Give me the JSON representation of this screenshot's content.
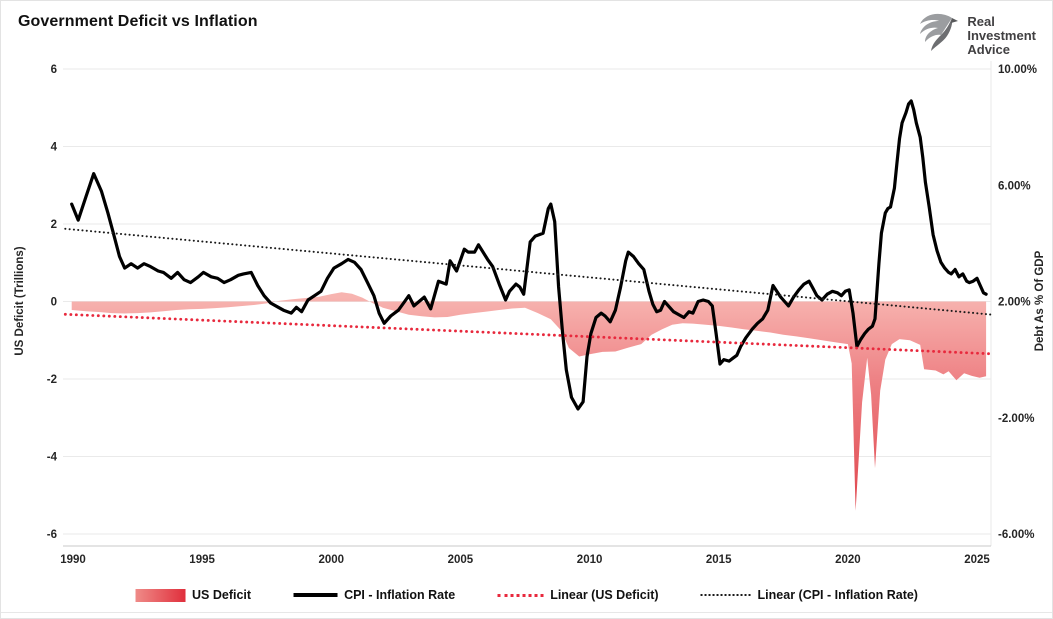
{
  "header": {
    "title": "Government Deficit vs Inflation",
    "logo": {
      "line1": "Real",
      "line2": "Investment",
      "line3": "Advice"
    }
  },
  "legend": {
    "items": [
      {
        "label": "US Deficit",
        "type": "area"
      },
      {
        "label": "CPI - Inflation Rate",
        "type": "line"
      },
      {
        "label": "Linear (US Deficit)",
        "type": "dotted-red"
      },
      {
        "label": "Linear (CPI - Inflation Rate)",
        "type": "dotted-black"
      }
    ]
  },
  "colors": {
    "cpi_line": "#000000",
    "deficit_fill_light": "#f7b4b0",
    "deficit_fill_mid": "#ee8285",
    "deficit_fill_deep": "#dd3b43",
    "deficit_trend": "#e8293d",
    "cpi_trend": "#1a1a1a",
    "gridline": "#eaeaea",
    "axis_line": "#c9c9c9",
    "tick_text": "#262626",
    "legend_area_left": "#ef8b88",
    "legend_area_right": "#e02f3c",
    "logo_gray": "#808285",
    "logo_gray_dark": "#6d6e71",
    "logo_text": "#414042"
  },
  "chart_data": {
    "type": "line",
    "title": "Government Deficit vs Inflation",
    "grid": "horizontal",
    "legend_position": "bottom",
    "x_axis": {
      "ticks": [
        1990,
        1995,
        2000,
        2005,
        2010,
        2015,
        2020,
        2025
      ],
      "range": [
        1989.6,
        2025.55
      ]
    },
    "y_axis_left": {
      "label": "US Deficit (Trillions)",
      "ticks": [
        6,
        4,
        2,
        0,
        -2,
        -4,
        -6
      ],
      "range": [
        -6,
        6
      ]
    },
    "y_axis_right": {
      "label": "Debt As % Of GDP",
      "ticks": [
        {
          "value": 10,
          "label": "10.00%"
        },
        {
          "value": 6,
          "label": "6.00%"
        },
        {
          "value": 2,
          "label": "2.00%"
        },
        {
          "value": -2,
          "label": "-2.00%"
        },
        {
          "value": -6,
          "label": "-6.00%"
        }
      ],
      "range": [
        -6,
        10
      ]
    },
    "series": [
      {
        "name": "US Deficit",
        "type": "area",
        "axis": "left",
        "unit": "trillions_usd",
        "points": [
          [
            1989.95,
            -0.22
          ],
          [
            1990.5,
            -0.25
          ],
          [
            1991,
            -0.27
          ],
          [
            1991.5,
            -0.3
          ],
          [
            1992,
            -0.31
          ],
          [
            1992.5,
            -0.3
          ],
          [
            1993,
            -0.28
          ],
          [
            1993.5,
            -0.25
          ],
          [
            1994,
            -0.22
          ],
          [
            1994.5,
            -0.2
          ],
          [
            1995,
            -0.19
          ],
          [
            1995.5,
            -0.17
          ],
          [
            1996,
            -0.15
          ],
          [
            1996.5,
            -0.12
          ],
          [
            1997,
            -0.09
          ],
          [
            1997.5,
            -0.05
          ],
          [
            1998,
            0.02
          ],
          [
            1998.5,
            0.06
          ],
          [
            1999,
            0.09
          ],
          [
            1999.5,
            0.12
          ],
          [
            2000,
            0.19
          ],
          [
            2000.4,
            0.24
          ],
          [
            2000.8,
            0.2
          ],
          [
            2001.2,
            0.1
          ],
          [
            2001.6,
            -0.04
          ],
          [
            2002,
            -0.16
          ],
          [
            2002.5,
            -0.25
          ],
          [
            2003,
            -0.34
          ],
          [
            2003.5,
            -0.38
          ],
          [
            2004,
            -0.41
          ],
          [
            2004.5,
            -0.4
          ],
          [
            2005,
            -0.34
          ],
          [
            2005.5,
            -0.3
          ],
          [
            2006,
            -0.26
          ],
          [
            2006.5,
            -0.22
          ],
          [
            2007,
            -0.18
          ],
          [
            2007.5,
            -0.16
          ],
          [
            2008,
            -0.3
          ],
          [
            2008.5,
            -0.46
          ],
          [
            2008.9,
            -0.75
          ],
          [
            2009.2,
            -1.2
          ],
          [
            2009.6,
            -1.42
          ],
          [
            2010,
            -1.36
          ],
          [
            2010.5,
            -1.3
          ],
          [
            2011,
            -1.29
          ],
          [
            2011.5,
            -1.19
          ],
          [
            2012,
            -1.1
          ],
          [
            2012.4,
            -0.86
          ],
          [
            2012.8,
            -0.72
          ],
          [
            2013.2,
            -0.6
          ],
          [
            2013.6,
            -0.56
          ],
          [
            2014,
            -0.57
          ],
          [
            2014.5,
            -0.6
          ],
          [
            2015,
            -0.63
          ],
          [
            2015.5,
            -0.67
          ],
          [
            2016,
            -0.72
          ],
          [
            2016.5,
            -0.76
          ],
          [
            2017,
            -0.8
          ],
          [
            2017.5,
            -0.86
          ],
          [
            2018,
            -0.9
          ],
          [
            2018.5,
            -0.95
          ],
          [
            2019,
            -1.0
          ],
          [
            2019.5,
            -1.05
          ],
          [
            2020,
            -1.1
          ],
          [
            2020.15,
            -1.6
          ],
          [
            2020.3,
            -5.4
          ],
          [
            2020.55,
            -2.6
          ],
          [
            2020.75,
            -1.45
          ],
          [
            2020.9,
            -2.4
          ],
          [
            2021.05,
            -4.3
          ],
          [
            2021.25,
            -2.3
          ],
          [
            2021.45,
            -1.5
          ],
          [
            2021.7,
            -1.1
          ],
          [
            2022,
            -0.97
          ],
          [
            2022.4,
            -1.0
          ],
          [
            2022.8,
            -1.12
          ],
          [
            2022.95,
            -1.75
          ],
          [
            2023.4,
            -1.78
          ],
          [
            2023.7,
            -1.88
          ],
          [
            2023.9,
            -1.8
          ],
          [
            2024.2,
            -2.03
          ],
          [
            2024.5,
            -1.85
          ],
          [
            2024.8,
            -1.92
          ],
          [
            2025.1,
            -1.97
          ],
          [
            2025.35,
            -1.93
          ]
        ]
      },
      {
        "name": "CPI - Inflation Rate",
        "type": "line",
        "axis": "right",
        "unit": "percent",
        "points": [
          [
            1989.95,
            5.35
          ],
          [
            1990.2,
            4.8
          ],
          [
            1990.5,
            5.6
          ],
          [
            1990.8,
            6.4
          ],
          [
            1991.1,
            5.8
          ],
          [
            1991.35,
            5.05
          ],
          [
            1991.55,
            4.4
          ],
          [
            1991.8,
            3.55
          ],
          [
            1992,
            3.15
          ],
          [
            1992.25,
            3.3
          ],
          [
            1992.5,
            3.15
          ],
          [
            1992.75,
            3.3
          ],
          [
            1993,
            3.2
          ],
          [
            1993.3,
            3.05
          ],
          [
            1993.5,
            3.0
          ],
          [
            1993.8,
            2.8
          ],
          [
            1994.05,
            3.0
          ],
          [
            1994.3,
            2.75
          ],
          [
            1994.55,
            2.65
          ],
          [
            1994.85,
            2.85
          ],
          [
            1995.05,
            3.0
          ],
          [
            1995.35,
            2.85
          ],
          [
            1995.6,
            2.8
          ],
          [
            1995.85,
            2.65
          ],
          [
            1996.1,
            2.75
          ],
          [
            1996.4,
            2.9
          ],
          [
            1996.6,
            2.95
          ],
          [
            1996.9,
            3.0
          ],
          [
            1997.15,
            2.55
          ],
          [
            1997.4,
            2.2
          ],
          [
            1997.65,
            1.95
          ],
          [
            1997.95,
            1.8
          ],
          [
            1998.15,
            1.7
          ],
          [
            1998.45,
            1.6
          ],
          [
            1998.65,
            1.8
          ],
          [
            1998.85,
            1.65
          ],
          [
            1999.1,
            2.05
          ],
          [
            1999.35,
            2.2
          ],
          [
            1999.6,
            2.35
          ],
          [
            1999.85,
            2.8
          ],
          [
            2000.1,
            3.15
          ],
          [
            2000.4,
            3.3
          ],
          [
            2000.65,
            3.45
          ],
          [
            2000.9,
            3.35
          ],
          [
            2001.15,
            3.1
          ],
          [
            2001.4,
            2.65
          ],
          [
            2001.65,
            2.2
          ],
          [
            2001.85,
            1.6
          ],
          [
            2002.05,
            1.25
          ],
          [
            2002.3,
            1.5
          ],
          [
            2002.6,
            1.7
          ],
          [
            2002.8,
            1.95
          ],
          [
            2003,
            2.2
          ],
          [
            2003.2,
            1.85
          ],
          [
            2003.4,
            2.0
          ],
          [
            2003.6,
            2.15
          ],
          [
            2003.85,
            1.75
          ],
          [
            2004.15,
            2.7
          ],
          [
            2004.45,
            2.6
          ],
          [
            2004.6,
            3.4
          ],
          [
            2004.85,
            3.05
          ],
          [
            2005.15,
            3.8
          ],
          [
            2005.3,
            3.7
          ],
          [
            2005.55,
            3.7
          ],
          [
            2005.7,
            3.95
          ],
          [
            2006.05,
            3.45
          ],
          [
            2006.25,
            3.2
          ],
          [
            2006.5,
            2.6
          ],
          [
            2006.75,
            2.05
          ],
          [
            2006.9,
            2.35
          ],
          [
            2007.15,
            2.6
          ],
          [
            2007.3,
            2.5
          ],
          [
            2007.45,
            2.25
          ],
          [
            2007.7,
            4.05
          ],
          [
            2007.9,
            4.25
          ],
          [
            2008.2,
            4.35
          ],
          [
            2008.4,
            5.2
          ],
          [
            2008.5,
            5.35
          ],
          [
            2008.65,
            4.75
          ],
          [
            2008.8,
            2.5
          ],
          [
            2008.95,
            0.95
          ],
          [
            2009.1,
            -0.35
          ],
          [
            2009.3,
            -1.3
          ],
          [
            2009.55,
            -1.7
          ],
          [
            2009.75,
            -1.45
          ],
          [
            2009.9,
            0.1
          ],
          [
            2010.05,
            0.9
          ],
          [
            2010.25,
            1.45
          ],
          [
            2010.45,
            1.6
          ],
          [
            2010.6,
            1.5
          ],
          [
            2010.8,
            1.3
          ],
          [
            2011,
            1.7
          ],
          [
            2011.2,
            2.5
          ],
          [
            2011.4,
            3.4
          ],
          [
            2011.5,
            3.7
          ],
          [
            2011.7,
            3.55
          ],
          [
            2011.9,
            3.3
          ],
          [
            2012.1,
            3.1
          ],
          [
            2012.3,
            2.35
          ],
          [
            2012.45,
            1.9
          ],
          [
            2012.6,
            1.65
          ],
          [
            2012.75,
            1.7
          ],
          [
            2012.9,
            2.0
          ],
          [
            2013.05,
            1.85
          ],
          [
            2013.25,
            1.65
          ],
          [
            2013.45,
            1.55
          ],
          [
            2013.65,
            1.45
          ],
          [
            2013.85,
            1.65
          ],
          [
            2014,
            1.6
          ],
          [
            2014.2,
            2.0
          ],
          [
            2014.4,
            2.05
          ],
          [
            2014.6,
            2.0
          ],
          [
            2014.75,
            1.85
          ],
          [
            2014.9,
            0.9
          ],
          [
            2015.05,
            -0.15
          ],
          [
            2015.2,
            0.0
          ],
          [
            2015.4,
            -0.05
          ],
          [
            2015.55,
            0.05
          ],
          [
            2015.7,
            0.15
          ],
          [
            2015.85,
            0.45
          ],
          [
            2016.05,
            0.75
          ],
          [
            2016.3,
            1.05
          ],
          [
            2016.5,
            1.25
          ],
          [
            2016.7,
            1.4
          ],
          [
            2016.9,
            1.7
          ],
          [
            2017.1,
            2.55
          ],
          [
            2017.25,
            2.35
          ],
          [
            2017.4,
            2.15
          ],
          [
            2017.55,
            2.0
          ],
          [
            2017.7,
            1.85
          ],
          [
            2017.9,
            2.15
          ],
          [
            2018.1,
            2.4
          ],
          [
            2018.3,
            2.6
          ],
          [
            2018.5,
            2.7
          ],
          [
            2018.65,
            2.45
          ],
          [
            2018.8,
            2.2
          ],
          [
            2019,
            2.05
          ],
          [
            2019.2,
            2.25
          ],
          [
            2019.4,
            2.35
          ],
          [
            2019.6,
            2.3
          ],
          [
            2019.75,
            2.2
          ],
          [
            2019.9,
            2.35
          ],
          [
            2020.05,
            2.4
          ],
          [
            2020.2,
            1.6
          ],
          [
            2020.35,
            0.45
          ],
          [
            2020.5,
            0.7
          ],
          [
            2020.65,
            0.9
          ],
          [
            2020.8,
            1.05
          ],
          [
            2020.95,
            1.15
          ],
          [
            2021.05,
            1.4
          ],
          [
            2021.2,
            3.3
          ],
          [
            2021.3,
            4.35
          ],
          [
            2021.45,
            5.05
          ],
          [
            2021.55,
            5.2
          ],
          [
            2021.65,
            5.25
          ],
          [
            2021.8,
            5.9
          ],
          [
            2021.9,
            6.75
          ],
          [
            2022,
            7.6
          ],
          [
            2022.1,
            8.15
          ],
          [
            2022.25,
            8.5
          ],
          [
            2022.35,
            8.8
          ],
          [
            2022.45,
            8.9
          ],
          [
            2022.55,
            8.6
          ],
          [
            2022.65,
            8.15
          ],
          [
            2022.8,
            7.65
          ],
          [
            2022.9,
            6.95
          ],
          [
            2023,
            6.1
          ],
          [
            2023.15,
            5.25
          ],
          [
            2023.3,
            4.3
          ],
          [
            2023.45,
            3.75
          ],
          [
            2023.6,
            3.35
          ],
          [
            2023.75,
            3.15
          ],
          [
            2023.9,
            3.0
          ],
          [
            2024,
            2.95
          ],
          [
            2024.15,
            3.1
          ],
          [
            2024.3,
            2.85
          ],
          [
            2024.45,
            2.95
          ],
          [
            2024.6,
            2.7
          ],
          [
            2024.7,
            2.65
          ],
          [
            2024.85,
            2.7
          ],
          [
            2025,
            2.8
          ],
          [
            2025.1,
            2.6
          ],
          [
            2025.25,
            2.3
          ],
          [
            2025.35,
            2.25
          ]
        ]
      },
      {
        "name": "Linear (US Deficit)",
        "type": "trend",
        "axis": "left",
        "unit": "trillions_usd",
        "points": [
          [
            1989.7,
            -0.33
          ],
          [
            2025.55,
            -1.35
          ]
        ]
      },
      {
        "name": "Linear (CPI - Inflation Rate)",
        "type": "trend",
        "axis": "right",
        "unit": "percent",
        "points": [
          [
            1989.7,
            4.5
          ],
          [
            2025.55,
            1.55
          ]
        ]
      }
    ]
  }
}
